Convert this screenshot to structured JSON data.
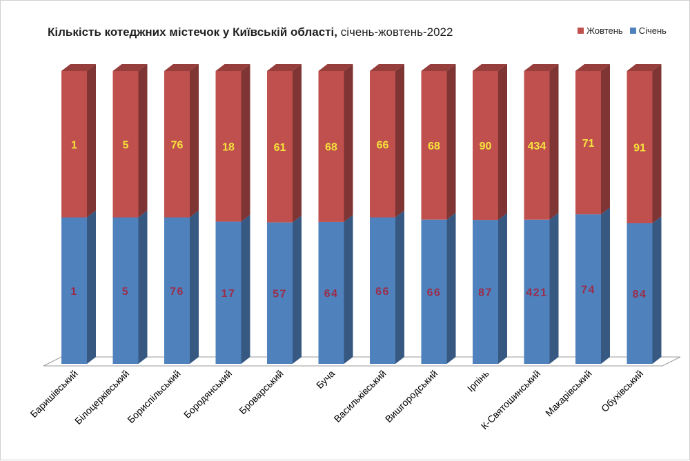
{
  "title": {
    "main": "Кількість котеджних містечок у Київській області,",
    "sub": " січень-жовтень-2022"
  },
  "legend": [
    {
      "name": "Жовтень",
      "color": "#c0504d"
    },
    {
      "name": "Січень",
      "color": "#4f81bd"
    }
  ],
  "chart_data": {
    "type": "bar",
    "stacked_percent": true,
    "categories": [
      "Баришівський",
      "Білоцерківський",
      "Бориспільський",
      "Бородянський",
      "Броварський",
      "Буча",
      "Васильківський",
      "Вишгородський",
      "Ірпінь",
      "К-Святошинський",
      "Макарівський",
      "Обухівський"
    ],
    "series": [
      {
        "name": "Січень",
        "values": [
          1,
          5,
          76,
          17,
          57,
          64,
          66,
          66,
          87,
          421,
          74,
          84
        ],
        "color": "#4f81bd",
        "label_color": "#9b2d4a"
      },
      {
        "name": "Жовтень",
        "values": [
          1,
          5,
          76,
          18,
          61,
          68,
          66,
          68,
          90,
          434,
          71,
          91
        ],
        "color": "#c0504d",
        "label_color": "#f5e33c"
      }
    ],
    "grid": false,
    "legend_position": "top-right"
  }
}
